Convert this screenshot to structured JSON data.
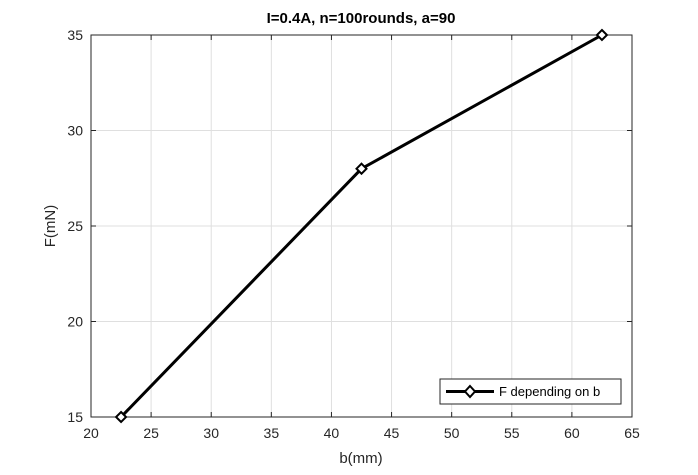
{
  "chart_data": {
    "type": "line",
    "title": "I=0.4A, n=100rounds, a=90",
    "xlabel": "b(mm)",
    "ylabel": "F(mN)",
    "xlim": [
      20,
      65
    ],
    "ylim": [
      15,
      35
    ],
    "xticks": [
      20,
      25,
      30,
      35,
      40,
      45,
      50,
      55,
      60,
      65
    ],
    "yticks": [
      15,
      20,
      25,
      30,
      35
    ],
    "grid": true,
    "legend_position": "bottom-right",
    "marker": "diamond",
    "series": [
      {
        "name": "F depending on b",
        "color": "#000000",
        "x": [
          22.5,
          42.5,
          62.5
        ],
        "y": [
          15,
          28,
          35
        ]
      }
    ]
  }
}
